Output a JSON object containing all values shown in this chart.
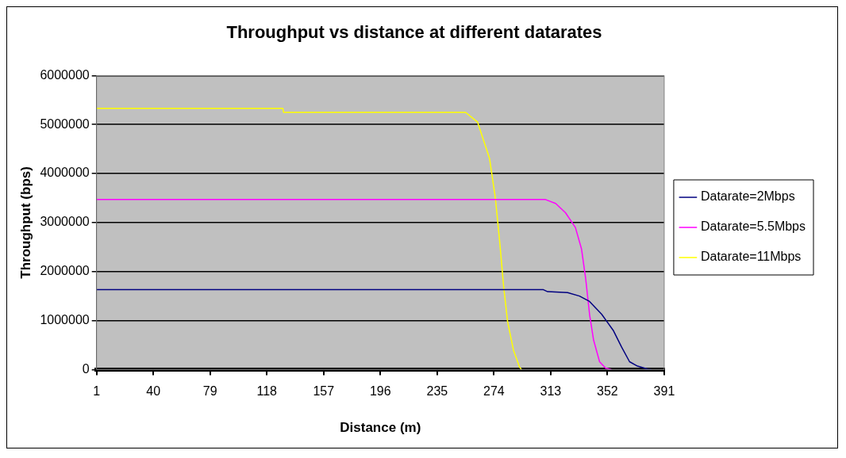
{
  "chart_data": {
    "type": "line",
    "title": "Throughput vs distance at different datarates",
    "xlabel": "Distance (m)",
    "ylabel": "Throughput (bps)",
    "xlim": [
      1,
      391
    ],
    "xticks": [
      1,
      40,
      79,
      118,
      157,
      196,
      235,
      274,
      313,
      352,
      391
    ],
    "ylim": [
      0,
      6000000
    ],
    "yticks": [
      0,
      1000000,
      2000000,
      3000000,
      4000000,
      5000000,
      6000000
    ],
    "grid": "y",
    "legend": "right",
    "marker": "none",
    "line_style": "solid",
    "series": [
      {
        "name": "Datarate=2Mbps",
        "color": "#000080",
        "x": [
          1,
          308,
          310.9,
          324.6,
          332.8,
          339.7,
          348,
          356.2,
          361.7,
          367.2,
          372.7,
          379.6,
          382.3
        ],
        "values": [
          1630000,
          1630000,
          1590000,
          1570000,
          1500000,
          1390000,
          1130000,
          790000,
          460000,
          160000,
          70000,
          10000,
          0
        ]
      },
      {
        "name": "Datarate=5.5Mbps",
        "color": "#ff00ff",
        "x": [
          1,
          309.5,
          316.4,
          323.2,
          330,
          334.2,
          337,
          339.7,
          342.5,
          346.6,
          350.7,
          354.8
        ],
        "values": [
          3470000,
          3470000,
          3390000,
          3200000,
          2900000,
          2460000,
          1870000,
          1130000,
          600000,
          160000,
          30000,
          0
        ]
      },
      {
        "name": "Datarate=11Mbps",
        "color": "#ffff00",
        "x": [
          1,
          129,
          129.5,
          254.5,
          262.8,
          271,
          275,
          278,
          280.6,
          283.4,
          287.5,
          291.6,
          293
        ],
        "values": [
          5330000,
          5330000,
          5250000,
          5250000,
          5050000,
          4310000,
          3500000,
          2600000,
          1720000,
          980000,
          390000,
          50000,
          0
        ]
      }
    ]
  }
}
